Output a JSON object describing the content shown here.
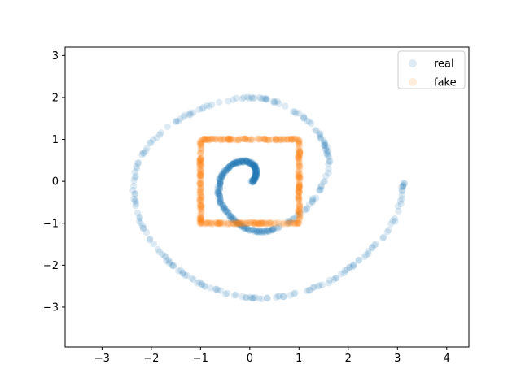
{
  "chart_data": {
    "type": "scatter",
    "title": "",
    "xlabel": "",
    "ylabel": "",
    "xlim": [
      -3.75,
      4.45
    ],
    "ylim": [
      -3.95,
      3.2
    ],
    "xticks": [
      -3,
      -2,
      -1,
      0,
      1,
      2,
      3,
      4
    ],
    "yticks": [
      -3,
      -2,
      -1,
      0,
      1,
      2,
      3
    ],
    "grid": false,
    "legend_position": "top-right",
    "series": [
      {
        "name": "real",
        "color": "#1f77b4",
        "alpha": 0.15,
        "shape": "spiral",
        "description_points": [
          [
            0.05,
            -0.02
          ],
          [
            0.12,
            0.15
          ],
          [
            0.1,
            0.35
          ],
          [
            -0.1,
            0.48
          ],
          [
            -0.38,
            0.38
          ],
          [
            -0.6,
            0.05
          ],
          [
            -0.6,
            -0.45
          ],
          [
            -0.3,
            -0.95
          ],
          [
            0.2,
            -1.2
          ],
          [
            0.75,
            -1.0
          ],
          [
            1.25,
            -0.5
          ],
          [
            1.6,
            0.3
          ],
          [
            1.45,
            1.05
          ],
          [
            0.95,
            1.65
          ],
          [
            0.2,
            1.98
          ],
          [
            -0.7,
            1.85
          ],
          [
            -1.6,
            1.35
          ],
          [
            -2.2,
            0.6
          ],
          [
            -2.35,
            -0.35
          ],
          [
            -2.05,
            -1.35
          ],
          [
            -1.35,
            -2.2
          ],
          [
            -0.4,
            -2.7
          ],
          [
            0.6,
            -2.75
          ],
          [
            1.6,
            -2.4
          ],
          [
            2.4,
            -1.7
          ],
          [
            2.95,
            -0.9
          ],
          [
            3.12,
            -0.05
          ]
        ]
      },
      {
        "name": "fake",
        "color": "#ff7f0e",
        "alpha": 0.15,
        "shape": "square",
        "corners": [
          [
            -1,
            1
          ],
          [
            1,
            1
          ],
          [
            1,
            -1
          ],
          [
            -1,
            -1
          ]
        ]
      }
    ]
  }
}
